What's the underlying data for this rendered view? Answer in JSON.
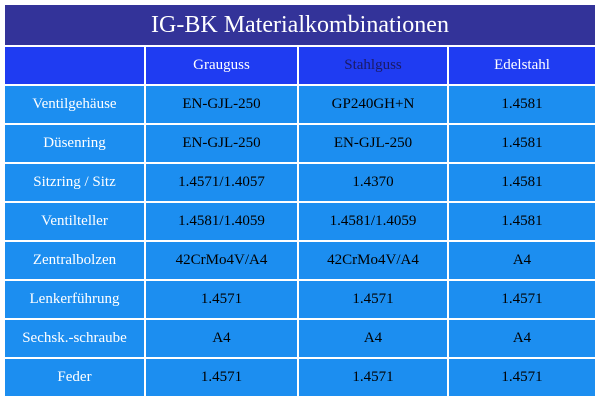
{
  "header": {
    "title": "IG-BK Materialkombinationen"
  },
  "table": {
    "columns": [
      "Grauguss",
      "Stahlguss",
      "Edelstahl"
    ],
    "rows": [
      {
        "label": "Ventilgehäuse",
        "cells": [
          "EN-GJL-250",
          "GP240GH+N",
          "1.4581"
        ]
      },
      {
        "label": "Düsenring",
        "cells": [
          "EN-GJL-250",
          "EN-GJL-250",
          "1.4581"
        ]
      },
      {
        "label": "Sitzring / Sitz",
        "cells": [
          "1.4571/1.4057",
          "1.4370",
          "1.4581"
        ]
      },
      {
        "label": "Ventilteller",
        "cells": [
          "1.4581/1.4059",
          "1.4581/1.4059",
          "1.4581"
        ]
      },
      {
        "label": "Zentralbolzen",
        "cells": [
          "42CrMo4V/A4",
          "42CrMo4V/A4",
          "A4"
        ]
      },
      {
        "label": "Lenkerführung",
        "cells": [
          "1.4571",
          "1.4571",
          "1.4571"
        ]
      },
      {
        "label": "Sechsk.-schraube",
        "cells": [
          "A4",
          "A4",
          "A4"
        ]
      },
      {
        "label": "Feder",
        "cells": [
          "1.4571",
          "1.4571",
          "1.4571"
        ]
      }
    ]
  }
}
